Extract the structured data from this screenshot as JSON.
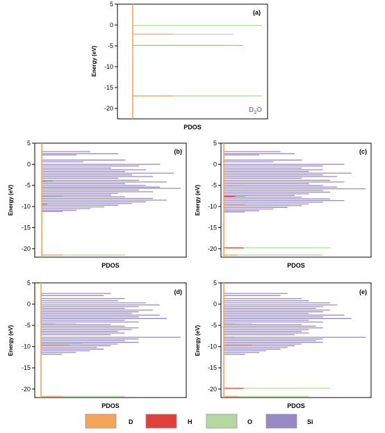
{
  "colors": {
    "D": "#f5a55a",
    "H": "#e0403a",
    "O": "#b2d8a0",
    "Si": "#9889c6",
    "axis": "#000000"
  },
  "legend": [
    {
      "key": "D",
      "label": "D"
    },
    {
      "key": "H",
      "label": "H"
    },
    {
      "key": "O",
      "label": "O"
    },
    {
      "key": "Si",
      "label": "Si"
    }
  ],
  "chart_data": [
    {
      "type": "bar",
      "panel_label": "(a)",
      "annotation": {
        "base": "D",
        "sub": "2",
        "tail": "O"
      },
      "xlabel": "PDOS",
      "ylabel": "Energy (eV)",
      "ylim": [
        -22.5,
        5
      ],
      "yticks": [
        5,
        0,
        -5,
        -10,
        -15,
        -20
      ],
      "series": [
        {
          "name": "D",
          "levels": [
            [
              -2.2,
              0.32
            ],
            [
              -4.9,
              0.85
            ],
            [
              -17.0,
              0.32
            ]
          ]
        },
        {
          "name": "O",
          "levels": [
            [
              -0.1,
              1.0
            ],
            [
              -2.2,
              0.78
            ],
            [
              -4.9,
              0.73
            ],
            [
              -17.0,
              1.08
            ]
          ]
        }
      ]
    },
    {
      "type": "bar",
      "panel_label": "(b)",
      "xlabel": "PDOS",
      "ylabel": "Energy (eV)",
      "ylim": [
        -22,
        5
      ],
      "yticks": [
        5,
        0,
        -5,
        -10,
        -15,
        -20
      ],
      "series": [
        {
          "name": "D",
          "levels": [
            [
              -4.0,
              0.03
            ],
            [
              -7.6,
              0.05
            ],
            [
              -9.5,
              0.04
            ],
            [
              -21.5,
              0.15
            ]
          ]
        },
        {
          "name": "O",
          "levels": [
            [
              -4.0,
              0.08
            ],
            [
              -7.6,
              0.15
            ],
            [
              -21.5,
              0.6
            ]
          ]
        },
        {
          "name": "Si",
          "levels": [
            [
              3.0,
              0.35
            ],
            [
              2.5,
              0.55
            ],
            [
              2.2,
              0.25
            ],
            [
              1.0,
              0.6
            ],
            [
              0.6,
              0.3
            ],
            [
              0.0,
              0.85
            ],
            [
              -0.4,
              0.7
            ],
            [
              -0.9,
              0.5
            ],
            [
              -1.3,
              0.75
            ],
            [
              -1.7,
              0.6
            ],
            [
              -2.1,
              0.95
            ],
            [
              -2.5,
              0.65
            ],
            [
              -2.9,
              0.8
            ],
            [
              -3.3,
              0.55
            ],
            [
              -3.8,
              0.7
            ],
            [
              -4.2,
              0.9
            ],
            [
              -4.6,
              0.6
            ],
            [
              -5.0,
              0.75
            ],
            [
              -5.4,
              0.85
            ],
            [
              -5.7,
              1.0
            ],
            [
              -6.1,
              0.7
            ],
            [
              -6.5,
              0.8
            ],
            [
              -6.9,
              0.55
            ],
            [
              -7.3,
              0.5
            ],
            [
              -7.7,
              0.6
            ],
            [
              -8.1,
              0.8
            ],
            [
              -8.5,
              0.9
            ],
            [
              -8.9,
              0.75
            ],
            [
              -9.3,
              0.65
            ],
            [
              -9.7,
              0.55
            ],
            [
              -10.1,
              0.45
            ],
            [
              -10.5,
              0.35
            ],
            [
              -10.9,
              0.25
            ],
            [
              -11.2,
              0.15
            ]
          ]
        }
      ]
    },
    {
      "type": "bar",
      "panel_label": "(c)",
      "xlabel": "PDOS",
      "ylabel": "Energy (eV)",
      "ylim": [
        -22,
        5
      ],
      "yticks": [
        5,
        0,
        -5,
        -10,
        -15,
        -20
      ],
      "series": [
        {
          "name": "D",
          "levels": [
            [
              -5.0,
              0.08
            ],
            [
              -9.5,
              0.15
            ],
            [
              -21.5,
              0.1
            ]
          ]
        },
        {
          "name": "H",
          "levels": [
            [
              -7.6,
              0.08
            ],
            [
              -19.8,
              0.14
            ]
          ]
        },
        {
          "name": "O",
          "levels": [
            [
              -5.0,
              0.12
            ],
            [
              -7.6,
              0.15
            ],
            [
              -19.8,
              0.75
            ],
            [
              -21.5,
              0.7
            ]
          ]
        },
        {
          "name": "Si",
          "levels": [
            [
              3.0,
              0.4
            ],
            [
              2.5,
              0.5
            ],
            [
              2.2,
              0.25
            ],
            [
              1.0,
              0.55
            ],
            [
              0.6,
              0.35
            ],
            [
              0.0,
              0.85
            ],
            [
              -0.4,
              0.7
            ],
            [
              -0.9,
              0.55
            ],
            [
              -1.3,
              0.7
            ],
            [
              -1.7,
              0.6
            ],
            [
              -2.1,
              0.9
            ],
            [
              -2.5,
              0.7
            ],
            [
              -2.9,
              0.8
            ],
            [
              -3.3,
              0.55
            ],
            [
              -3.8,
              0.75
            ],
            [
              -4.2,
              0.85
            ],
            [
              -4.6,
              0.6
            ],
            [
              -5.0,
              0.7
            ],
            [
              -5.4,
              0.8
            ],
            [
              -5.8,
              1.0
            ],
            [
              -6.2,
              0.7
            ],
            [
              -6.6,
              0.75
            ],
            [
              -7.0,
              0.6
            ],
            [
              -7.4,
              0.5
            ],
            [
              -7.8,
              0.55
            ],
            [
              -8.2,
              0.75
            ],
            [
              -8.6,
              0.85
            ],
            [
              -9.0,
              0.7
            ],
            [
              -9.4,
              0.6
            ],
            [
              -9.8,
              0.55
            ],
            [
              -10.2,
              0.45
            ],
            [
              -10.6,
              0.35
            ],
            [
              -11.0,
              0.25
            ],
            [
              -11.3,
              0.15
            ]
          ]
        }
      ]
    },
    {
      "type": "bar",
      "panel_label": "(d)",
      "xlabel": "PDOS",
      "ylabel": "Energy (eV)",
      "ylim": [
        -22,
        5
      ],
      "yticks": [
        5,
        0,
        -5,
        -10,
        -15,
        -20
      ],
      "series": [
        {
          "name": "D",
          "levels": [
            [
              -4.6,
              0.1
            ],
            [
              -9.7,
              0.2
            ],
            [
              -21.7,
              0.15
            ]
          ]
        },
        {
          "name": "O",
          "levels": [
            [
              -4.6,
              0.25
            ],
            [
              -9.3,
              0.3
            ],
            [
              -21.7,
              0.6
            ]
          ]
        },
        {
          "name": "Si",
          "levels": [
            [
              2.5,
              0.5
            ],
            [
              2.0,
              0.45
            ],
            [
              1.3,
              0.6
            ],
            [
              0.8,
              0.55
            ],
            [
              0.3,
              0.75
            ],
            [
              -0.2,
              0.85
            ],
            [
              -0.6,
              0.7
            ],
            [
              -1.0,
              0.6
            ],
            [
              -1.4,
              0.8
            ],
            [
              -1.8,
              0.7
            ],
            [
              -2.2,
              0.65
            ],
            [
              -2.6,
              0.85
            ],
            [
              -3.0,
              0.7
            ],
            [
              -3.4,
              0.9
            ],
            [
              -3.8,
              0.6
            ],
            [
              -4.2,
              0.7
            ],
            [
              -4.8,
              0.5
            ],
            [
              -5.2,
              0.6
            ],
            [
              -5.6,
              0.7
            ],
            [
              -6.0,
              0.65
            ],
            [
              -6.4,
              0.55
            ],
            [
              -6.8,
              0.6
            ],
            [
              -7.2,
              0.5
            ],
            [
              -7.8,
              1.0
            ],
            [
              -8.2,
              0.7
            ],
            [
              -8.6,
              0.6
            ],
            [
              -9.0,
              0.7
            ],
            [
              -9.4,
              0.55
            ],
            [
              -9.8,
              0.5
            ],
            [
              -10.2,
              0.4
            ],
            [
              -10.6,
              0.45
            ],
            [
              -11.0,
              0.35
            ],
            [
              -11.4,
              0.25
            ],
            [
              -11.8,
              0.15
            ]
          ]
        }
      ]
    },
    {
      "type": "bar",
      "panel_label": "(e)",
      "xlabel": "PDOS",
      "ylabel": "Energy (eV)",
      "ylim": [
        -22,
        5
      ],
      "yticks": [
        5,
        0,
        -5,
        -10,
        -15,
        -20
      ],
      "series": [
        {
          "name": "D",
          "levels": [
            [
              -4.6,
              0.08
            ],
            [
              -9.7,
              0.2
            ],
            [
              -21.7,
              0.1
            ]
          ]
        },
        {
          "name": "H",
          "levels": [
            [
              -7.8,
              0.08
            ],
            [
              -19.8,
              0.14
            ]
          ]
        },
        {
          "name": "O",
          "levels": [
            [
              -4.6,
              0.2
            ],
            [
              -8.2,
              0.25
            ],
            [
              -19.8,
              0.75
            ],
            [
              -21.7,
              0.6
            ]
          ]
        },
        {
          "name": "Si",
          "levels": [
            [
              2.5,
              0.45
            ],
            [
              2.0,
              0.4
            ],
            [
              1.3,
              0.55
            ],
            [
              0.8,
              0.6
            ],
            [
              0.3,
              0.75
            ],
            [
              -0.2,
              0.8
            ],
            [
              -0.6,
              0.7
            ],
            [
              -1.0,
              0.65
            ],
            [
              -1.4,
              0.75
            ],
            [
              -1.8,
              0.7
            ],
            [
              -2.2,
              0.6
            ],
            [
              -2.6,
              0.85
            ],
            [
              -3.0,
              0.7
            ],
            [
              -3.4,
              0.9
            ],
            [
              -3.8,
              0.6
            ],
            [
              -4.2,
              0.7
            ],
            [
              -4.8,
              0.55
            ],
            [
              -5.2,
              0.65
            ],
            [
              -5.6,
              0.7
            ],
            [
              -6.0,
              0.6
            ],
            [
              -6.4,
              0.55
            ],
            [
              -6.8,
              0.6
            ],
            [
              -7.2,
              0.5
            ],
            [
              -7.8,
              1.0
            ],
            [
              -8.2,
              0.7
            ],
            [
              -8.6,
              0.65
            ],
            [
              -9.0,
              0.7
            ],
            [
              -9.4,
              0.55
            ],
            [
              -9.8,
              0.5
            ],
            [
              -10.2,
              0.45
            ],
            [
              -10.6,
              0.4
            ],
            [
              -11.0,
              0.3
            ],
            [
              -11.4,
              0.25
            ],
            [
              -11.8,
              0.15
            ]
          ]
        }
      ]
    }
  ]
}
